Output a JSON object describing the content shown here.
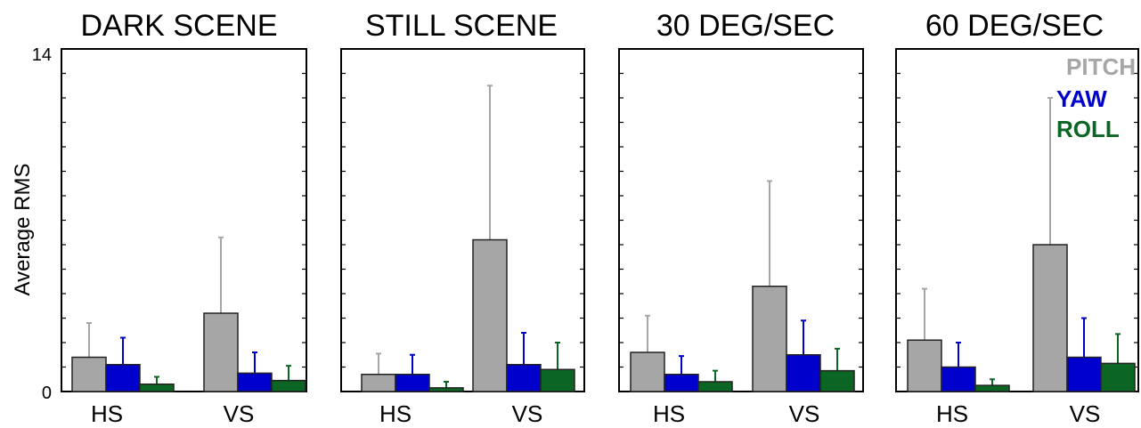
{
  "chart_data": {
    "type": "bar",
    "ylabel": "Average RMS",
    "ylim": [
      0,
      14
    ],
    "yticks": [
      0,
      14
    ],
    "legend": {
      "placement": "top-right",
      "entries": [
        {
          "name": "PITCH",
          "color": "#a6a6a6"
        },
        {
          "name": "YAW",
          "color": "#0000cc"
        },
        {
          "name": "ROLL",
          "color": "#0b6623"
        }
      ]
    },
    "panels": [
      {
        "title": "DARK SCENE",
        "categories": [
          "HS",
          "VS"
        ],
        "series": [
          {
            "name": "PITCH",
            "values": [
              1.4,
              3.2
            ],
            "errors": [
              1.4,
              3.1
            ]
          },
          {
            "name": "YAW",
            "values": [
              1.1,
              0.75
            ],
            "errors": [
              1.1,
              0.85
            ]
          },
          {
            "name": "ROLL",
            "values": [
              0.3,
              0.45
            ],
            "errors": [
              0.3,
              0.6
            ]
          }
        ]
      },
      {
        "title": "STILL SCENE",
        "categories": [
          "HS",
          "VS"
        ],
        "series": [
          {
            "name": "PITCH",
            "values": [
              0.7,
              6.2
            ],
            "errors": [
              0.85,
              6.3
            ]
          },
          {
            "name": "YAW",
            "values": [
              0.7,
              1.1
            ],
            "errors": [
              0.8,
              1.3
            ]
          },
          {
            "name": "ROLL",
            "values": [
              0.15,
              0.9
            ],
            "errors": [
              0.25,
              1.1
            ]
          }
        ]
      },
      {
        "title": "30 DEG/SEC",
        "categories": [
          "HS",
          "VS"
        ],
        "series": [
          {
            "name": "PITCH",
            "values": [
              1.6,
              4.3
            ],
            "errors": [
              1.5,
              4.3
            ]
          },
          {
            "name": "YAW",
            "values": [
              0.7,
              1.5
            ],
            "errors": [
              0.75,
              1.4
            ]
          },
          {
            "name": "ROLL",
            "values": [
              0.4,
              0.85
            ],
            "errors": [
              0.45,
              0.9
            ]
          }
        ]
      },
      {
        "title": "60 DEG/SEC",
        "categories": [
          "HS",
          "VS"
        ],
        "series": [
          {
            "name": "PITCH",
            "values": [
              2.1,
              6.0
            ],
            "errors": [
              2.1,
              6.0
            ]
          },
          {
            "name": "YAW",
            "values": [
              1.0,
              1.4
            ],
            "errors": [
              1.0,
              1.6
            ]
          },
          {
            "name": "ROLL",
            "values": [
              0.25,
              1.15
            ],
            "errors": [
              0.25,
              1.2
            ]
          }
        ]
      }
    ]
  }
}
